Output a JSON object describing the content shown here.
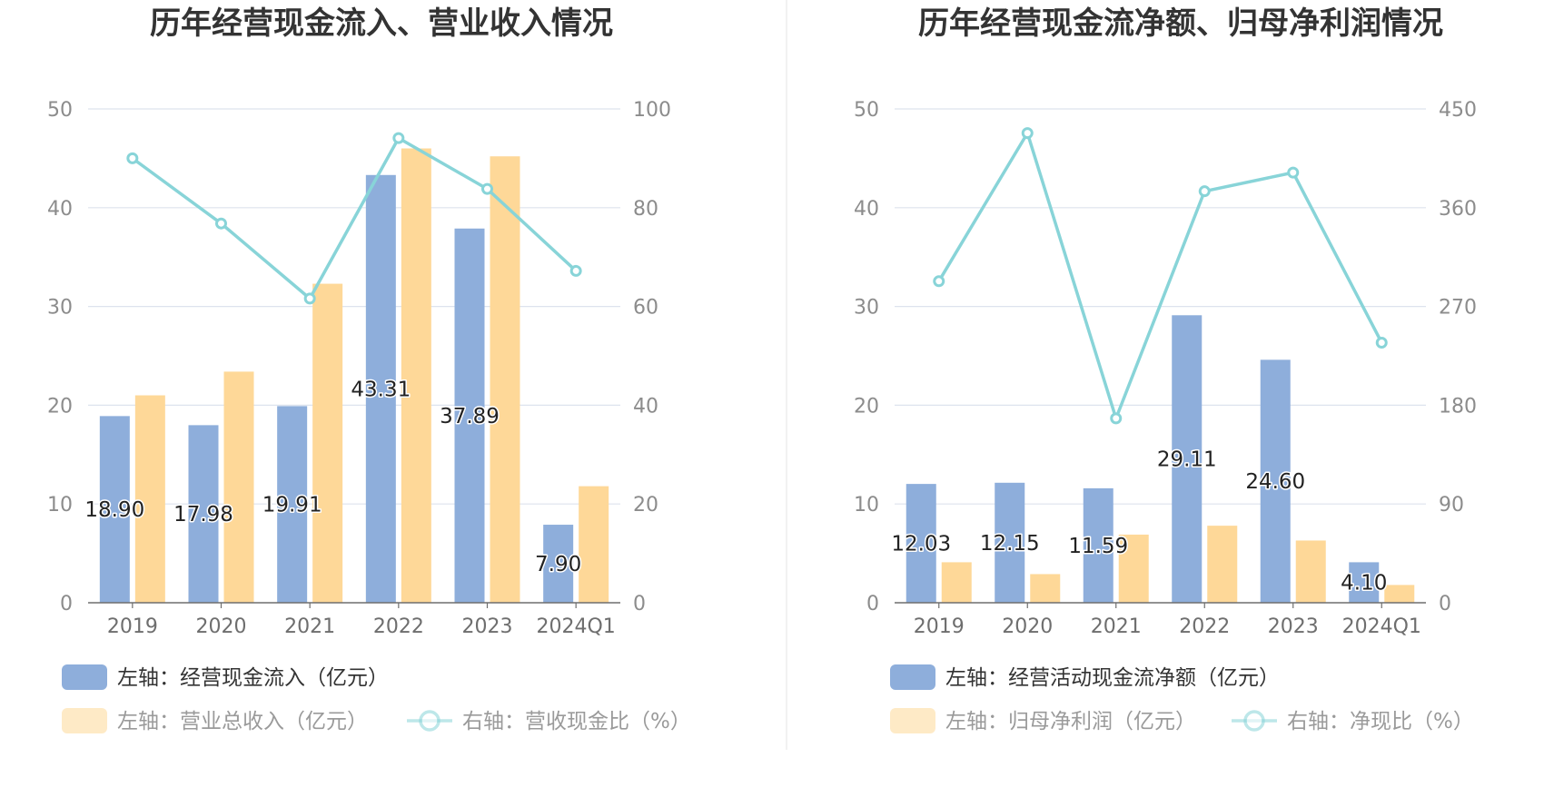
{
  "chart_data": [
    {
      "type": "bar",
      "title": "历年经营现金流入、营业收入情况",
      "categories": [
        "2019",
        "2020",
        "2021",
        "2022",
        "2023",
        "2024Q1"
      ],
      "left_axis": {
        "min": 0,
        "max": 50,
        "ticks": [
          0,
          10,
          20,
          30,
          40,
          50
        ]
      },
      "right_axis": {
        "min": 0,
        "max": 100,
        "ticks": [
          0,
          20,
          40,
          60,
          80,
          100
        ]
      },
      "grid": true,
      "legend_position": "bottom",
      "series": [
        {
          "name": "左轴：经营现金流入（亿元）",
          "type": "bar",
          "axis": "left",
          "color": "#8eaedb",
          "values": [
            18.9,
            17.98,
            19.91,
            43.31,
            37.89,
            7.9
          ],
          "labels": [
            "18.90",
            "17.98",
            "19.91",
            "43.31",
            "37.89",
            "7.90"
          ]
        },
        {
          "name": "左轴：营业总收入（亿元）",
          "type": "bar",
          "axis": "left",
          "color": "#fed898",
          "values": [
            21.0,
            23.4,
            32.3,
            46.0,
            45.2,
            11.8
          ]
        },
        {
          "name": "右轴：营收现金比（%）",
          "type": "line",
          "axis": "right",
          "color": "#88d4d8",
          "values": [
            90.0,
            76.8,
            61.6,
            94.1,
            83.8,
            67.2
          ]
        }
      ]
    },
    {
      "type": "bar",
      "title": "历年经营现金流净额、归母净利润情况",
      "categories": [
        "2019",
        "2020",
        "2021",
        "2022",
        "2023",
        "2024Q1"
      ],
      "left_axis": {
        "min": 0,
        "max": 50,
        "ticks": [
          0,
          10,
          20,
          30,
          40,
          50
        ]
      },
      "right_axis": {
        "min": 0,
        "max": 450,
        "ticks": [
          0,
          90,
          180,
          270,
          360,
          450
        ]
      },
      "grid": true,
      "legend_position": "bottom",
      "series": [
        {
          "name": "左轴：经营活动现金流净额（亿元）",
          "type": "bar",
          "axis": "left",
          "color": "#8eaedb",
          "values": [
            12.03,
            12.15,
            11.59,
            29.11,
            24.6,
            4.1
          ],
          "labels": [
            "12.03",
            "12.15",
            "11.59",
            "29.11",
            "24.60",
            "4.10"
          ]
        },
        {
          "name": "左轴：归母净利润（亿元）",
          "type": "bar",
          "axis": "left",
          "color": "#fed898",
          "values": [
            4.1,
            2.9,
            6.9,
            7.8,
            6.3,
            1.8
          ]
        },
        {
          "name": "右轴：净现比（%）",
          "type": "line",
          "axis": "right",
          "color": "#88d4d8",
          "values": [
            293,
            428,
            168,
            375,
            392,
            237
          ]
        }
      ]
    }
  ]
}
